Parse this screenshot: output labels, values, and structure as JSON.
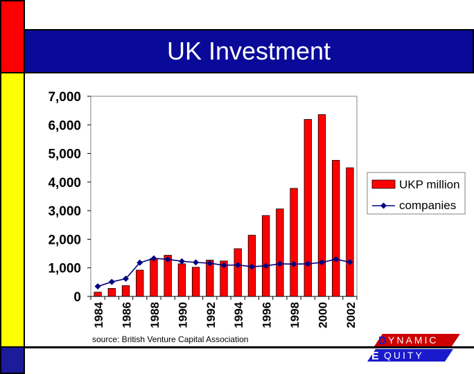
{
  "slide": {
    "title": "UK Investment",
    "source": "source: British Venture Capital Association"
  },
  "logo": {
    "line1": "YNAMIC",
    "line2": "QUITY",
    "initial1": "D",
    "initial2": "E"
  },
  "colors": {
    "bars": "#ff0000",
    "line": "#00007f",
    "title_bg": "#0a0a99",
    "plot_bg": "#ffffff"
  },
  "chart_data": {
    "type": "bar",
    "x": [
      1984,
      1985,
      1986,
      1987,
      1988,
      1989,
      1990,
      1991,
      1992,
      1993,
      1994,
      1995,
      1996,
      1997,
      1998,
      1999,
      2000,
      2001,
      2002
    ],
    "series": [
      {
        "name": "UKP million",
        "type": "bar",
        "values": [
          150,
          280,
          380,
          920,
          1320,
          1440,
          1140,
          1020,
          1270,
          1240,
          1670,
          2140,
          2830,
          3060,
          3780,
          6190,
          6360,
          4760,
          4500
        ]
      },
      {
        "name": "companies",
        "type": "line",
        "values": [
          350,
          510,
          620,
          1180,
          1330,
          1300,
          1230,
          1190,
          1160,
          1090,
          1100,
          1040,
          1070,
          1140,
          1130,
          1140,
          1190,
          1300,
          1200
        ]
      }
    ],
    "yticks": [
      "0",
      "1,000",
      "2,000",
      "3,000",
      "4,000",
      "5,000",
      "6,000",
      "7,000"
    ],
    "xticks": [
      "1984",
      "1986",
      "1988",
      "1990",
      "1992",
      "1994",
      "1996",
      "1998",
      "2000",
      "2002"
    ],
    "ylim": [
      0,
      7000
    ],
    "legend": "right",
    "grid": false
  }
}
